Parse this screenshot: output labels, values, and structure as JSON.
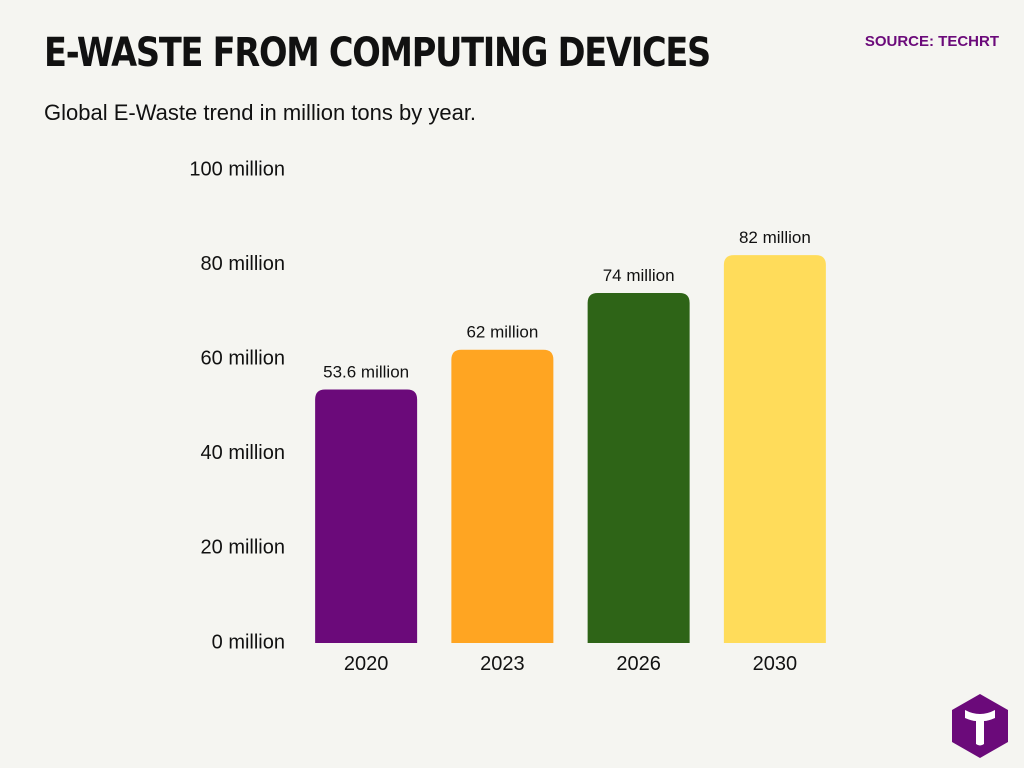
{
  "header": {
    "title": "E-WASTE FROM COMPUTING DEVICES",
    "subtitle": "Global E-Waste trend in million tons by year.",
    "source": "SOURCE: TECHRT"
  },
  "logo": {
    "icon": "techrt-t-logo-icon",
    "color": "#6b0a7a"
  },
  "chart_data": {
    "type": "bar",
    "title": "E-WASTE FROM COMPUTING DEVICES",
    "subtitle": "Global E-Waste trend in million tons by year.",
    "categories": [
      "2020",
      "2023",
      "2026",
      "2030"
    ],
    "values": [
      53.6,
      62,
      74,
      82
    ],
    "data_labels": [
      "53.6 million",
      "62 million",
      "74 million",
      "82 million"
    ],
    "colors": [
      "#6b0a7a",
      "#ffa522",
      "#2e6417",
      "#ffdc5a"
    ],
    "ylim": [
      0,
      100
    ],
    "yticks": [
      0,
      20,
      40,
      60,
      80,
      100
    ],
    "ytick_labels": [
      "0 million",
      "20 million",
      "40 million",
      "60 million",
      "80 million",
      "100 million"
    ],
    "xlabel": "",
    "ylabel": "",
    "grid": false,
    "legend": "none"
  }
}
